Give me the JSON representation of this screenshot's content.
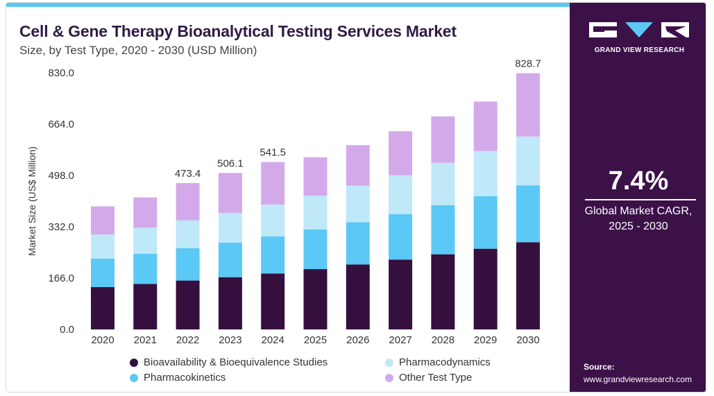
{
  "title": "Cell & Gene Therapy Bioanalytical Testing Services Market",
  "subtitle": "Size, by Test Type, 2020 - 2030 (USD Million)",
  "brand": {
    "name": "GRAND VIEW RESEARCH",
    "logo_icon": "gvr-logo-icon"
  },
  "cagr": {
    "value": "7.4%",
    "label_line1": "Global Market CAGR,",
    "label_line2": "2025 - 2030"
  },
  "source": {
    "label": "Source:",
    "url": "www.grandviewresearch.com"
  },
  "colors": {
    "accent_bar": "#5bc8f5",
    "sidebar_bg": "#3b1148",
    "title": "#2f1b45",
    "series": [
      "#35103f",
      "#5bc8f5",
      "#bfe8f8",
      "#d4a9ea"
    ]
  },
  "chart_data": {
    "type": "bar",
    "stacked": true,
    "categories": [
      "2020",
      "2021",
      "2022",
      "2023",
      "2024",
      "2025",
      "2026",
      "2027",
      "2028",
      "2029",
      "2030"
    ],
    "series": [
      {
        "name": "Bioavailability & Bioequivalence Studies",
        "values": [
          137,
          147,
          158,
          169,
          181,
          195,
          210,
          226,
          243,
          261,
          282
        ]
      },
      {
        "name": "Pharmacokinetics",
        "values": [
          92,
          98,
          105,
          112,
          120,
          128,
          137,
          147,
          159,
          170,
          184
        ]
      },
      {
        "name": "Pharmacodynamics",
        "values": [
          78,
          84,
          90,
          96,
          103,
          110,
          118,
          126,
          137,
          146,
          158
        ]
      },
      {
        "name": "Other Test Type",
        "values": [
          91,
          98,
          120.4,
          129.1,
          137.5,
          124,
          131,
          142,
          150,
          160,
          204.7
        ]
      }
    ],
    "totals_labels": [
      {
        "category": "2022",
        "text": "473.4"
      },
      {
        "category": "2023",
        "text": "506.1"
      },
      {
        "category": "2024",
        "text": "541.5"
      },
      {
        "category": "2030",
        "text": "828.7"
      }
    ],
    "ylabel": "Market Size (US$ Million)",
    "xlabel": "",
    "ylim": [
      0,
      830
    ],
    "yticks": [
      "0.0",
      "166.0",
      "332.0",
      "498.0",
      "664.0",
      "830.0"
    ],
    "grid": false,
    "legend_position": "bottom"
  }
}
